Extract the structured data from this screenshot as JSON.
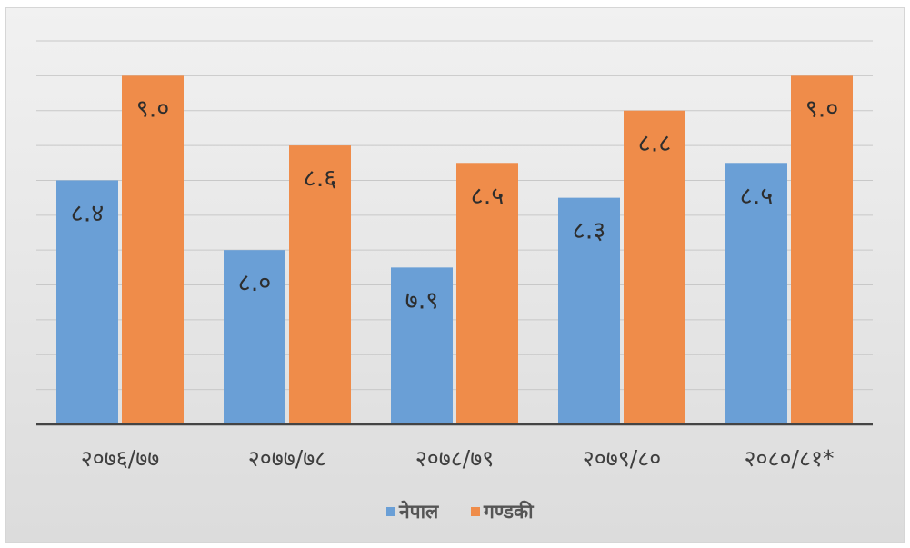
{
  "chart_data": {
    "type": "bar",
    "categories": [
      "२०७६/७७",
      "२०७७/७८",
      "२०७८/७९",
      "२०७९/८०",
      "२०८०/८१*"
    ],
    "series": [
      {
        "name": "नेपाल",
        "values": [
          8.4,
          8.0,
          7.9,
          8.3,
          8.5
        ],
        "labels": [
          "८.४",
          "८.०",
          "७.९",
          "८.३",
          "८.५"
        ],
        "color": "#6a9fd6"
      },
      {
        "name": "गण्डकी",
        "values": [
          9.0,
          8.6,
          8.5,
          8.8,
          9.0
        ],
        "labels": [
          "९.०",
          "८.६",
          "८.५",
          "८.८",
          "९.०"
        ],
        "color": "#ef8c4a"
      }
    ],
    "ylim": [
      7.0,
      9.2
    ],
    "grid": true,
    "legend_position": "bottom",
    "title": "",
    "xlabel": "",
    "ylabel": ""
  }
}
